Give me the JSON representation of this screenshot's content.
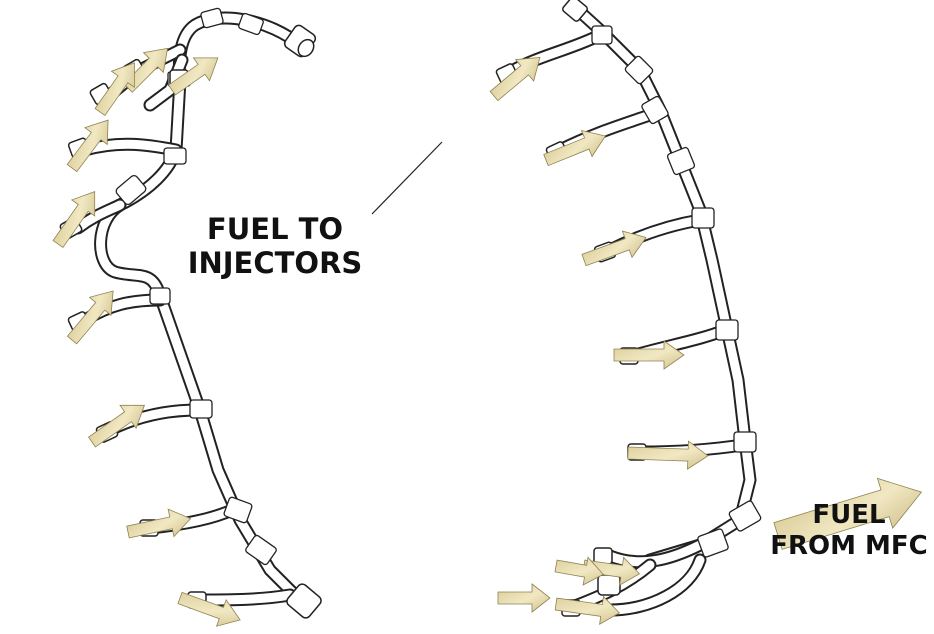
{
  "labels": {
    "fuel_to_injectors_line1": "FUEL TO",
    "fuel_to_injectors_line2": "INJECTORS",
    "fuel_from_mfc_line1": "FUEL",
    "fuel_from_mfc_line2": "FROM MFC"
  },
  "colors": {
    "arrow_fill": "#e3d6a0",
    "arrow_edge": "#8f8250",
    "line_art": "#222222",
    "background": "#ffffff"
  }
}
